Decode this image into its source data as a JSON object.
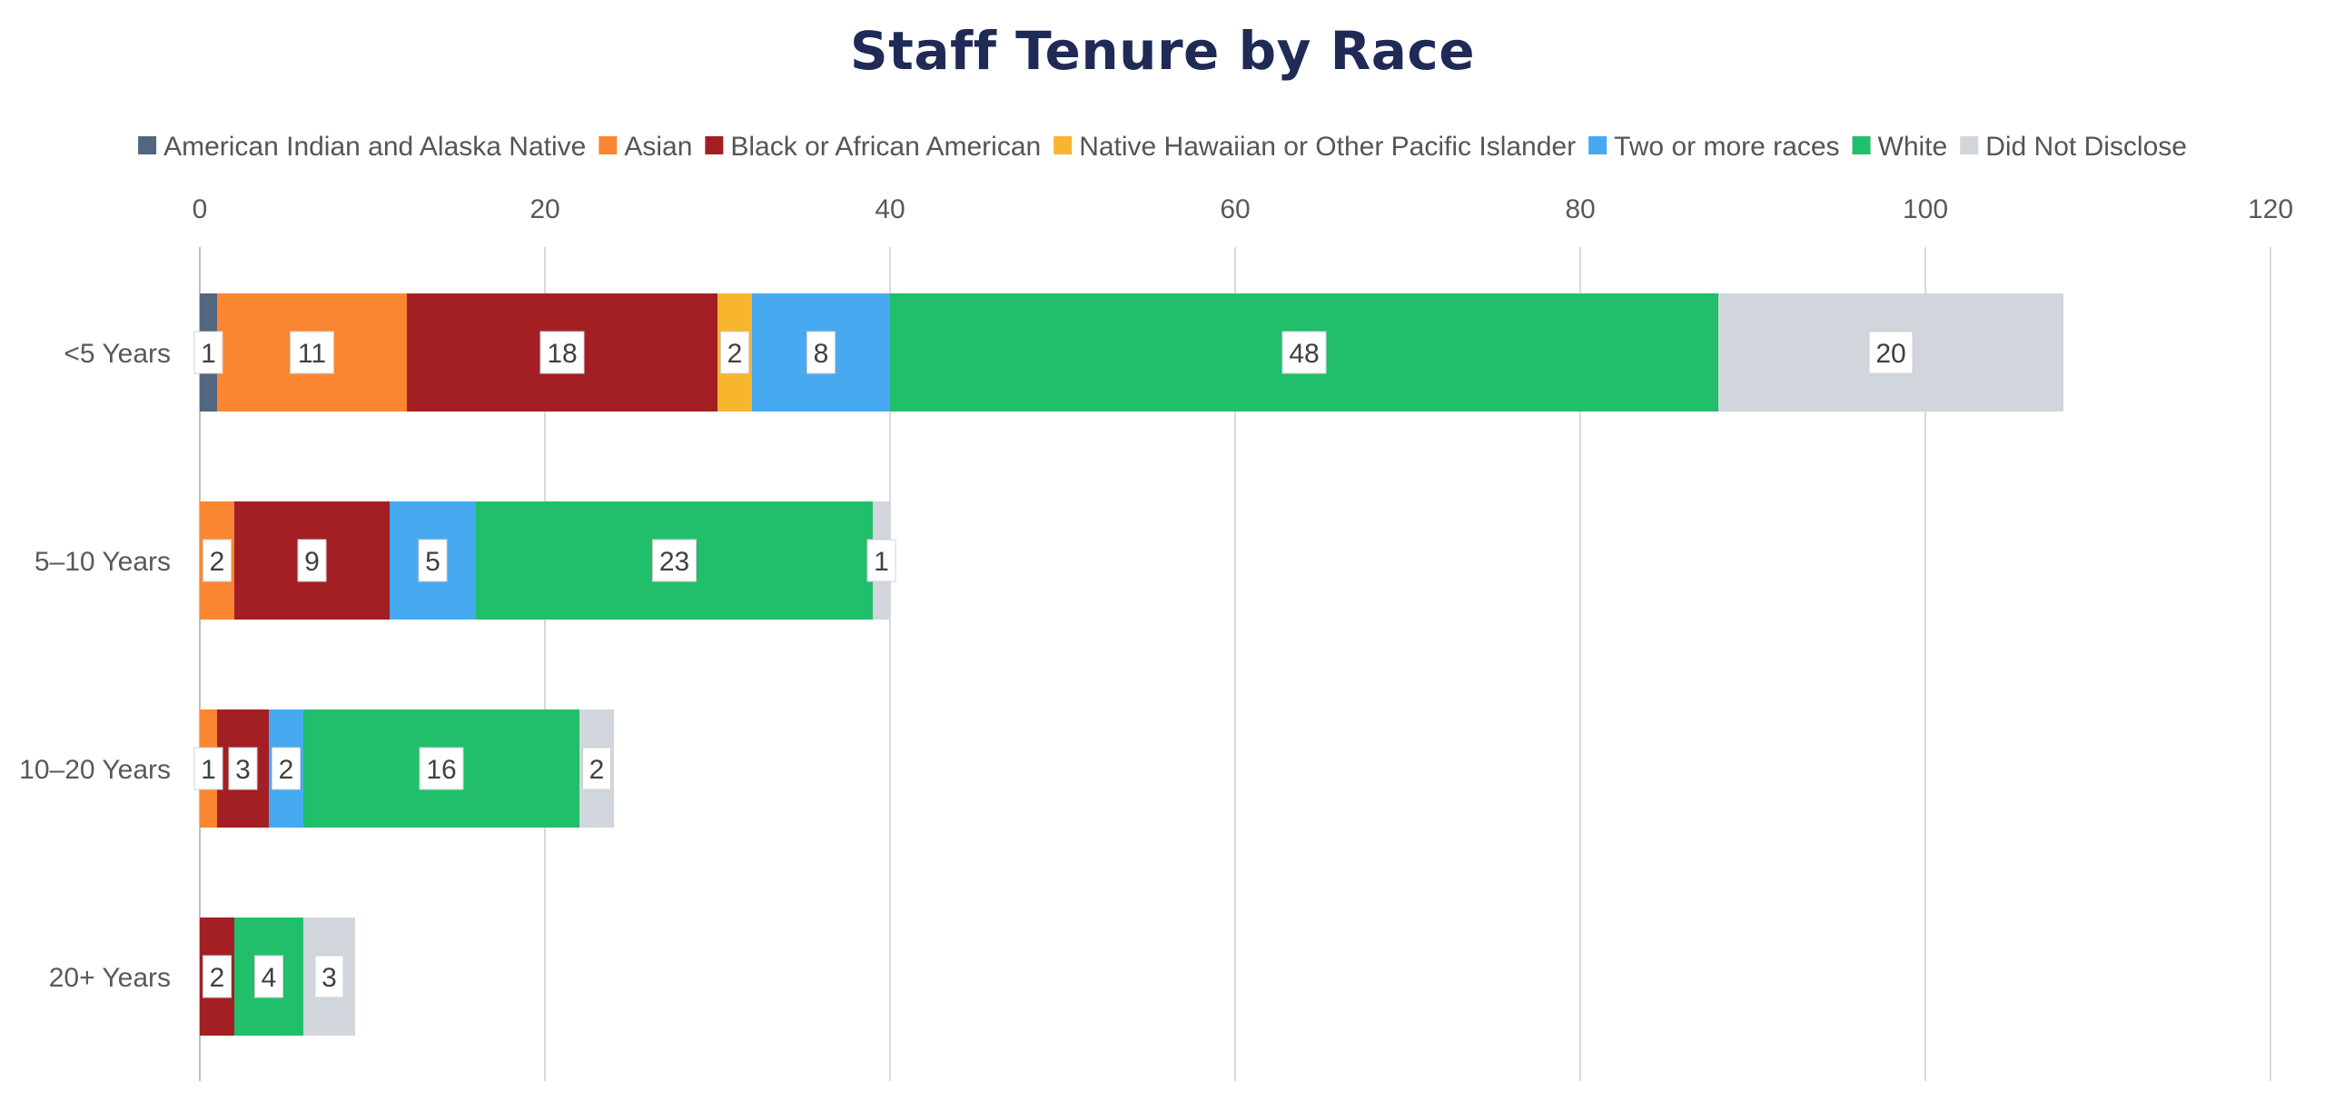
{
  "chart_data": {
    "type": "bar",
    "orientation": "horizontal",
    "stacked": true,
    "title": "Staff Tenure by Race",
    "categories": [
      "<5 Years",
      "5–10 Years",
      "10–20 Years",
      "20+ Years"
    ],
    "series": [
      {
        "name": "American Indian and Alaska Native",
        "color": "#52667f",
        "values": [
          1,
          0,
          0,
          0
        ]
      },
      {
        "name": "Asian",
        "color": "#fb8632",
        "values": [
          11,
          2,
          1,
          0
        ]
      },
      {
        "name": "Black or African American",
        "color": "#a41f24",
        "values": [
          18,
          9,
          3,
          2
        ]
      },
      {
        "name": "Native Hawaiian or Other Pacific Islander",
        "color": "#f8b52e",
        "values": [
          2,
          0,
          0,
          0
        ]
      },
      {
        "name": "Two or more races",
        "color": "#47aaf0",
        "values": [
          8,
          5,
          2,
          0
        ]
      },
      {
        "name": "White",
        "color": "#21bf6b",
        "values": [
          48,
          23,
          16,
          4
        ]
      },
      {
        "name": "Did Not Disclose",
        "color": "#d1d6dd",
        "values": [
          20,
          1,
          2,
          3
        ]
      }
    ],
    "xlim": [
      0,
      120
    ],
    "x_ticks": [
      "0",
      "20",
      "40",
      "60",
      "80",
      "100",
      "120"
    ],
    "xlabel": "",
    "ylabel": "",
    "grid": true,
    "legend_position": "top",
    "axis_position": "top"
  }
}
